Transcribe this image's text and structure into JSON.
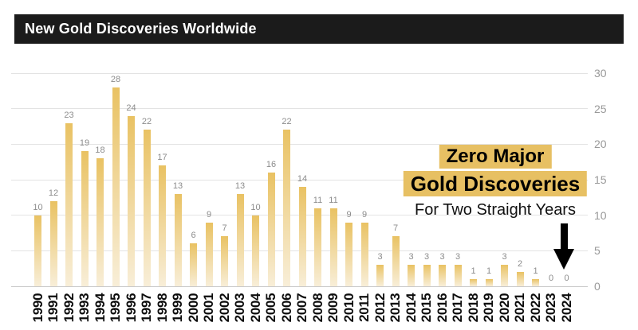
{
  "header": {
    "title": "New Gold Discoveries Worldwide"
  },
  "chart_data": {
    "type": "bar",
    "title": "New Gold Discoveries Worldwide",
    "categories": [
      "1990",
      "1991",
      "1992",
      "1993",
      "1994",
      "1995",
      "1996",
      "1997",
      "1998",
      "1999",
      "2000",
      "2001",
      "2002",
      "2003",
      "2004",
      "2005",
      "2006",
      "2007",
      "2008",
      "2009",
      "2010",
      "2011",
      "2012",
      "2013",
      "2014",
      "2015",
      "2016",
      "2017",
      "2018",
      "2019",
      "2020",
      "2021",
      "2022",
      "2023",
      "2024"
    ],
    "values": [
      10,
      12,
      23,
      19,
      18,
      28,
      24,
      22,
      17,
      13,
      6,
      9,
      7,
      13,
      10,
      16,
      22,
      14,
      11,
      11,
      9,
      9,
      3,
      7,
      3,
      3,
      3,
      3,
      1,
      1,
      3,
      2,
      1,
      0,
      0
    ],
    "xlabel": "",
    "ylabel": "",
    "ylim": [
      0,
      30
    ],
    "yticks": [
      0,
      5,
      10,
      15,
      20,
      25,
      30
    ],
    "y_axis_side": "right",
    "grid": "horizontal",
    "value_labels": true,
    "bar_color_top": "#e9c263",
    "bar_color_bottom": "#f8eed8",
    "value_label_color": "#8c8c8c",
    "tick_label_color": "#999999"
  },
  "annotation": {
    "line1": "Zero Major",
    "line2": "Gold Discoveries",
    "subtitle": "For Two Straight Years",
    "highlight_color": "#e7c063",
    "arrow_icon": "down-arrow"
  },
  "colors": {
    "background": "#ffffff",
    "header_bg": "#1b1b1b",
    "header_text": "#ffffff",
    "gridline": "#e3e3e3",
    "axis_line": "#c9c9c9",
    "arrow": "#000000"
  }
}
